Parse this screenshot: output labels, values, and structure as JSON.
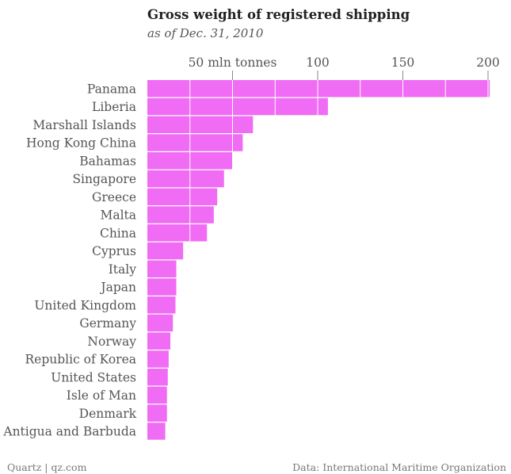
{
  "title": "Gross weight of registered shipping",
  "subtitle": "as of Dec. 31, 2010",
  "footer": {
    "left": "Quartz | qz.com",
    "right": "Data: International Maritime Organization"
  },
  "colors": {
    "bar": "#f06cf4",
    "text": "#555555",
    "grid": "#ffffff",
    "tick": "#888888"
  },
  "chart_data": {
    "type": "bar",
    "orientation": "horizontal",
    "title": "Gross weight of registered shipping",
    "subtitle": "as of Dec. 31, 2010",
    "categories": [
      "Panama",
      "Liberia",
      "Marshall Islands",
      "Hong Kong China",
      "Bahamas",
      "Singapore",
      "Greece",
      "Malta",
      "China",
      "Cyprus",
      "Italy",
      "Japan",
      "United Kingdom",
      "Germany",
      "Norway",
      "Republic of Korea",
      "United States",
      "Isle of Man",
      "Denmark",
      "Antigua and Barbuda"
    ],
    "values": [
      201,
      106,
      62,
      56,
      50,
      45,
      41,
      39,
      35,
      21,
      17,
      17,
      16.5,
      15,
      13.5,
      12.5,
      12,
      11.5,
      11.5,
      10.5
    ],
    "x_ticks": [
      50,
      100,
      150,
      200
    ],
    "x_tick_labels": [
      "50 mln tonnes",
      "100",
      "150",
      "200"
    ],
    "xlim": [
      0,
      200
    ],
    "xlabel": "",
    "ylabel": "",
    "grid": true,
    "grid_step": 25
  }
}
